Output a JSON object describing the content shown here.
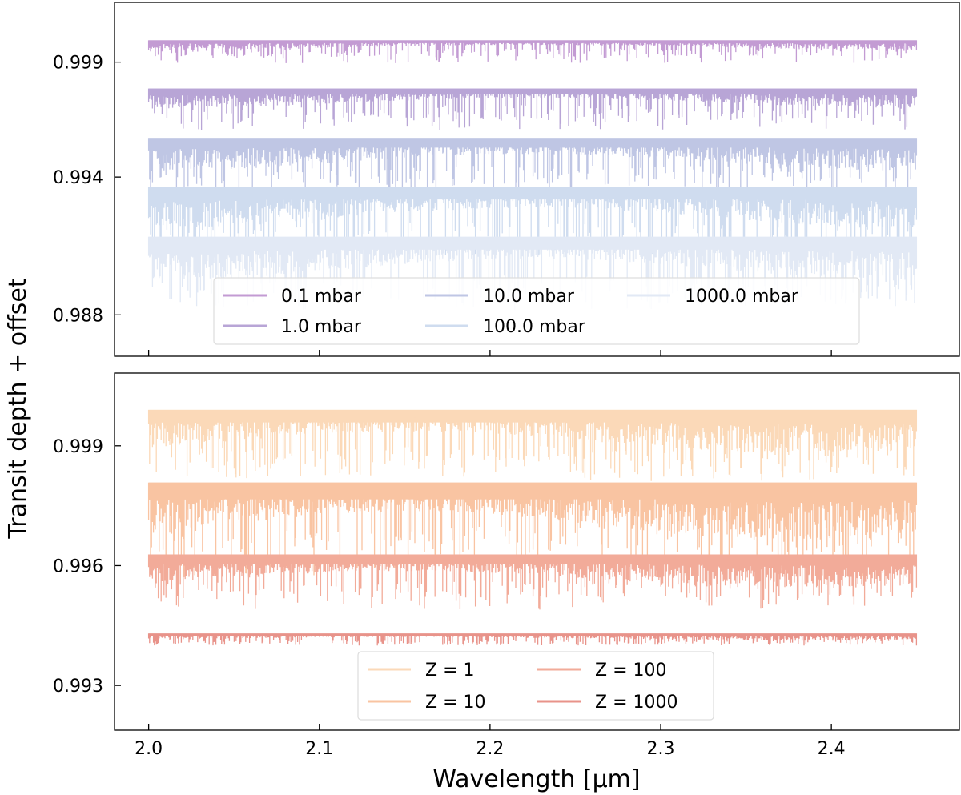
{
  "figure": {
    "ylabel": "Transit depth + offset",
    "xlabel": "Wavelength [μm]"
  },
  "chart_data": [
    {
      "type": "line",
      "panel": "top",
      "title": "",
      "xlabel": "Wavelength [μm]",
      "ylabel": "Transit depth + offset",
      "xlim": [
        1.98,
        2.475
      ],
      "ylim": [
        0.9862,
        1.0016
      ],
      "xticks": [
        2.0,
        2.1,
        2.2,
        2.3,
        2.4
      ],
      "yticks": [
        0.999,
        0.994,
        0.988
      ],
      "ytick_labels": [
        "0.999",
        "0.994",
        "0.988"
      ],
      "x_range": [
        2.0,
        2.45
      ],
      "legend_ncols": 3,
      "legend_loc": "lower center",
      "series": [
        {
          "name": "0.1 mbar",
          "color": "#c39bd3",
          "continuum": 0.99995,
          "max_depth": 0.001,
          "typical_depth": 0.00035
        },
        {
          "name": "1.0 mbar",
          "color": "#b8a5d6",
          "continuum": 0.99785,
          "max_depth": 0.0018,
          "typical_depth": 0.0007
        },
        {
          "name": "10.0 mbar",
          "color": "#bfc6e4",
          "continuum": 0.9957,
          "max_depth": 0.0022,
          "typical_depth": 0.0012
        },
        {
          "name": "100.0 mbar",
          "color": "#cfdcef",
          "continuum": 0.99355,
          "max_depth": 0.003,
          "typical_depth": 0.0015
        },
        {
          "name": "1000.0 mbar",
          "color": "#e2e9f5",
          "continuum": 0.9914,
          "max_depth": 0.003,
          "typical_depth": 0.0016
        }
      ]
    },
    {
      "type": "line",
      "panel": "bottom",
      "title": "",
      "xlabel": "Wavelength [μm]",
      "ylabel": "Transit depth + offset",
      "xlim": [
        1.98,
        2.475
      ],
      "ylim": [
        0.99188,
        1.00082
      ],
      "xticks": [
        2.0,
        2.1,
        2.2,
        2.3,
        2.4
      ],
      "xtick_labels": [
        "2.0",
        "2.1",
        "2.2",
        "2.3",
        "2.4"
      ],
      "yticks": [
        0.999,
        0.996,
        0.993
      ],
      "ytick_labels": [
        "0.999",
        "0.996",
        "0.993"
      ],
      "x_range": [
        2.0,
        2.45
      ],
      "legend_ncols": 2,
      "legend_loc": "lower center",
      "series": [
        {
          "name": "Z = 1",
          "color": "#fbd9b8",
          "continuum": 0.9999,
          "max_depth": 0.0017,
          "typical_depth": 0.0009
        },
        {
          "name": "Z = 10",
          "color": "#f9c4a2",
          "continuum": 0.99808,
          "max_depth": 0.0018,
          "typical_depth": 0.0012
        },
        {
          "name": "Z = 100",
          "color": "#f2ab99",
          "continuum": 0.99628,
          "max_depth": 0.0011,
          "typical_depth": 0.0007
        },
        {
          "name": "Z = 1000",
          "color": "#e8938a",
          "continuum": 0.9943,
          "max_depth": 0.0003,
          "typical_depth": 0.00015
        }
      ]
    }
  ]
}
